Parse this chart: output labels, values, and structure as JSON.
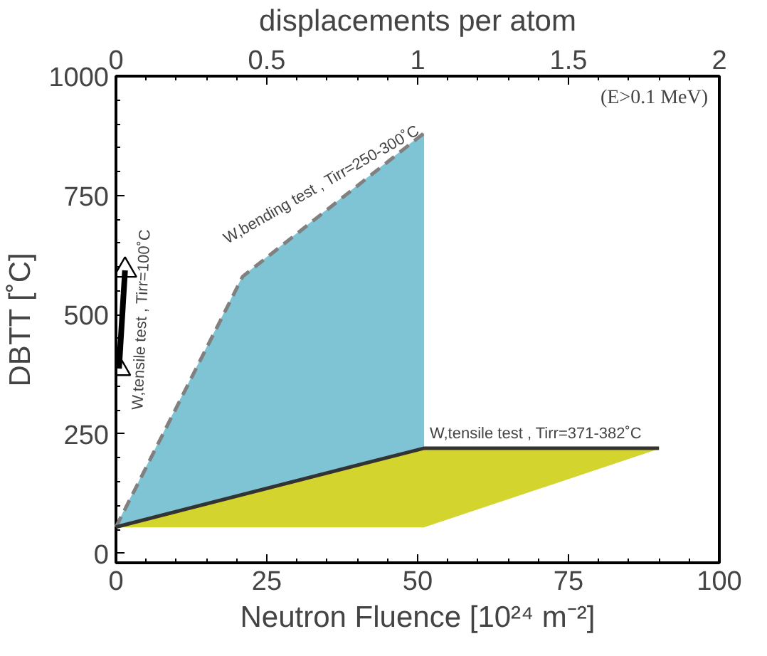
{
  "chart_data": {
    "type": "line",
    "xlabel": "Neutron Fluence [10²⁴ m⁻²]",
    "ylabel": "DBTT [˚C]",
    "x2label": "displacements per atom",
    "xlim": [
      0,
      100
    ],
    "xticks": [
      0,
      25,
      50,
      75,
      100
    ],
    "ylim": [
      -20,
      1000
    ],
    "yticks": [
      0,
      250,
      500,
      750,
      1000
    ],
    "x2lim": [
      0,
      2
    ],
    "x2ticks": [
      0,
      0.5,
      1,
      1.5,
      2
    ],
    "grid": false,
    "series": [
      {
        "color": "#808080",
        "colors": [
          "#7fc4d4",
          "#7fc4d4",
          "#7fc4d4"
        ],
        "line_style": "dashed",
        "marker": "none",
        "x": [
          0,
          21,
          51
        ],
        "values": [
          55,
          580,
          880
        ],
        "lower": [
          55,
          123,
          220
        ],
        "upper": [
          55,
          580,
          880
        ]
      },
      {
        "color": "#333333",
        "colors": [
          "#d4d42e",
          "#d4d42e",
          "#d4d42e"
        ],
        "line_style": "solid",
        "marker": "none",
        "x": [
          0,
          51,
          90
        ],
        "values": [
          55,
          220,
          220
        ],
        "lower": [
          55,
          55,
          220
        ],
        "upper": [
          55,
          220,
          220
        ]
      },
      {
        "color": "#000000",
        "line_style": "solid",
        "marker": "triangle",
        "x": [
          0.5,
          1.5
        ],
        "values": [
          387,
          593
        ]
      }
    ],
    "annotations": [
      {
        "text": "W,tensile test , Tirr=100˚C",
        "x": 1,
        "y": 490
      },
      {
        "text": "W,bending test , Tirr=250-300˚C",
        "x": 36,
        "y": 730
      },
      {
        "text": "W,tensile test , Tirr=371-382˚C",
        "x": 52,
        "y": 250
      },
      "(E>0.1 MeV)"
    ]
  }
}
